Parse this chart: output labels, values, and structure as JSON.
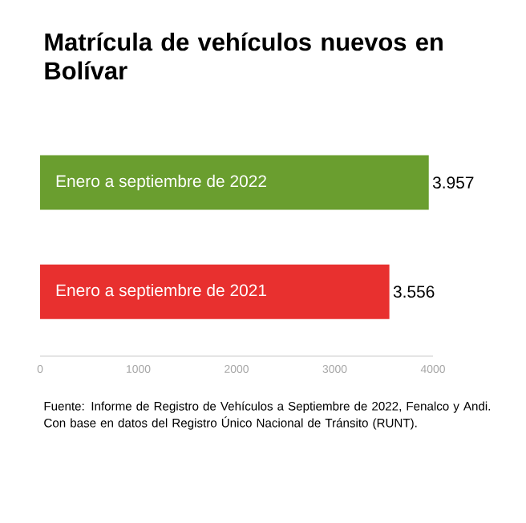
{
  "chart_data": {
    "type": "bar",
    "orientation": "horizontal",
    "title": "Matrícula de vehículos nuevos en Bolívar",
    "categories": [
      "Enero a septiembre de 2022",
      "Enero a septiembre de 2021"
    ],
    "values": [
      3957,
      3556
    ],
    "value_labels": [
      "3.957",
      "3.556"
    ],
    "colors": [
      "#6a9e2f",
      "#e8302f"
    ],
    "xlim": [
      0,
      4000
    ],
    "xticks": [
      0,
      1000,
      2000,
      3000,
      4000
    ],
    "grid": false,
    "annotations": [
      "Fuente: Informe de Registro de Vehículos a Septiembre de 2022, Fenalco y Andi. Con base en datos del Registro Único Nacional de Tránsito (RUNT)."
    ]
  }
}
